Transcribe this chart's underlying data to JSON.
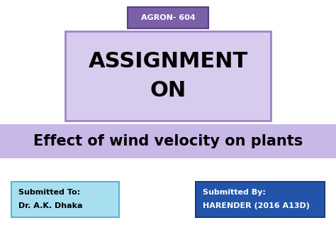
{
  "bg_color": "#ffffff",
  "agron_text": "AGRON- 604",
  "agron_box_facecolor": "#7b5fa8",
  "agron_box_edgecolor": "#5a3f80",
  "agron_text_color": "#ffffff",
  "assignment_text": "ASSIGNMENT\nON",
  "assignment_box_facecolor": "#d8ccee",
  "assignment_box_edgecolor": "#9b85c8",
  "assignment_text_color": "#000000",
  "effect_text": "Effect of wind velocity on plants",
  "effect_box_facecolor": "#c8b8e8",
  "effect_text_color": "#000000",
  "submitted_to_label": "Submitted To:",
  "submitted_to_name": "Dr. A.K. Dhaka",
  "submitted_to_box_facecolor": "#a8dff0",
  "submitted_to_box_edgecolor": "#50b8d8",
  "submitted_to_text_color": "#000000",
  "submitted_by_label": "Submitted By:",
  "submitted_by_name": "HARENDER (2016 A13D)",
  "submitted_by_box_facecolor": "#2255aa",
  "submitted_by_box_edgecolor": "#1a3d80",
  "submitted_by_text_color": "#ffffff",
  "fig_width": 4.74,
  "fig_height": 3.55,
  "dpi": 100
}
